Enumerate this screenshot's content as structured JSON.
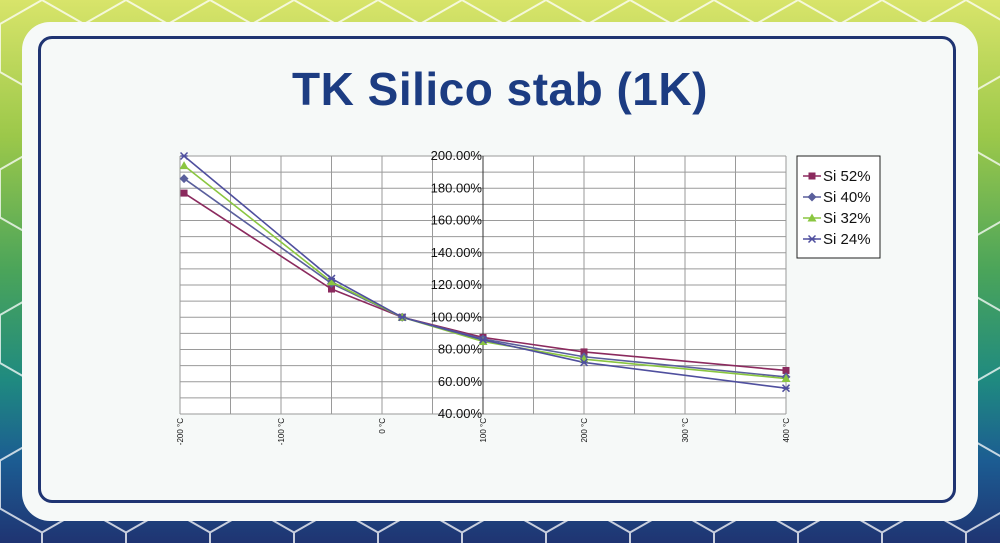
{
  "title": "TK Silico stab (1K)",
  "chart_data": {
    "type": "line",
    "title": "",
    "xlabel": "",
    "ylabel": "",
    "x_ticks": [
      "-200 °C",
      "-100 °C",
      "0 °C",
      "100 °C",
      "200 °C",
      "300 °C",
      "400 °C"
    ],
    "xlim": [
      -200,
      400
    ],
    "y_ticks": [
      "40.00%",
      "60.00%",
      "80.00%",
      "100.00%",
      "120.00%",
      "140.00%",
      "160.00%",
      "180.00%",
      "200.00%"
    ],
    "ylim": [
      40,
      200
    ],
    "grid": true,
    "legend_position": "right",
    "series": [
      {
        "name": "Si 52%",
        "color": "#8b2a5e",
        "marker": "square",
        "x": [
          -196,
          -50,
          20,
          100,
          200,
          400
        ],
        "y": [
          177,
          117.5,
          100,
          87.5,
          78.5,
          67
        ]
      },
      {
        "name": "Si 40%",
        "color": "#5a5f9c",
        "marker": "diamond",
        "x": [
          -196,
          -50,
          20,
          100,
          200,
          400
        ],
        "y": [
          186,
          121,
          100,
          86.5,
          75.5,
          63
        ]
      },
      {
        "name": "Si 32%",
        "color": "#8ac640",
        "marker": "triangle",
        "x": [
          -196,
          -50,
          20,
          100,
          200,
          400
        ],
        "y": [
          194,
          122,
          100,
          85,
          74,
          62
        ]
      },
      {
        "name": "Si 24%",
        "color": "#4f4f9e",
        "marker": "star",
        "x": [
          -196,
          -50,
          20,
          100,
          200,
          400
        ],
        "y": [
          200,
          124,
          100,
          86,
          72,
          56
        ]
      }
    ]
  }
}
